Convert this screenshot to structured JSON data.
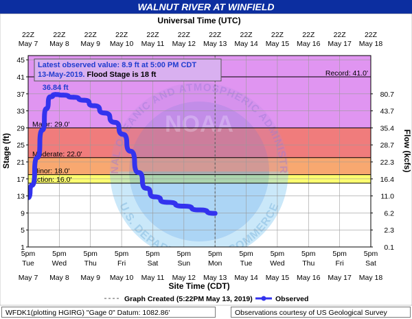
{
  "header": {
    "title": "WALNUT RIVER AT WINFIELD",
    "utc_label": "Universal Time (UTC)"
  },
  "colors": {
    "header_bg": "#0c2ea0",
    "record_band": "#d98cf0",
    "major_band": "#f07c7c",
    "moderate_band": "#f8a870",
    "minor_band": "#fbe08c",
    "action_band": "#ffff70",
    "normal_band": "#7fb3ff",
    "observed_line": "#3333ee",
    "annotation_text": "#1f3ccf"
  },
  "chart_data": {
    "type": "line",
    "x_unit": "date",
    "x_start": "2019-05-07 17:00",
    "x_end": "2019-05-18 17:00",
    "now": "2019-05-13 17:00",
    "ylim": [
      1,
      46
    ],
    "yticks": [
      1,
      5,
      9,
      13,
      17,
      21,
      25,
      29,
      33,
      37,
      41,
      45
    ],
    "ylabel": "Stage (ft)",
    "y2label": "Flow (kcfs)",
    "xlabel": "Site Time (CDT)",
    "flow_ticks": [
      {
        "stage": 1,
        "label": "0.1"
      },
      {
        "stage": 5,
        "label": "2.3"
      },
      {
        "stage": 9,
        "label": "6.2"
      },
      {
        "stage": 13,
        "label": "11.0"
      },
      {
        "stage": 17,
        "label": "16.4"
      },
      {
        "stage": 21,
        "label": "22.3"
      },
      {
        "stage": 25,
        "label": "28.7"
      },
      {
        "stage": 29,
        "label": "35.4"
      },
      {
        "stage": 33,
        "label": "43.7"
      },
      {
        "stage": 37,
        "label": "80.7"
      }
    ],
    "utc_ticks": [
      {
        "time": "22Z",
        "date": "May 7"
      },
      {
        "time": "22Z",
        "date": "May 8"
      },
      {
        "time": "22Z",
        "date": "May 9"
      },
      {
        "time": "22Z",
        "date": "May 10"
      },
      {
        "time": "22Z",
        "date": "May 11"
      },
      {
        "time": "22Z",
        "date": "May 12"
      },
      {
        "time": "22Z",
        "date": "May 13"
      },
      {
        "time": "22Z",
        "date": "May 14"
      },
      {
        "time": "22Z",
        "date": "May 15"
      },
      {
        "time": "22Z",
        "date": "May 16"
      },
      {
        "time": "22Z",
        "date": "May 17"
      },
      {
        "time": "22Z",
        "date": "May 18"
      }
    ],
    "local_ticks": [
      {
        "time": "5pm",
        "day": "Tue",
        "date": "May 7"
      },
      {
        "time": "5pm",
        "day": "Wed",
        "date": "May 8"
      },
      {
        "time": "5pm",
        "day": "Thu",
        "date": "May 9"
      },
      {
        "time": "5pm",
        "day": "Fri",
        "date": "May 10"
      },
      {
        "time": "5pm",
        "day": "Sat",
        "date": "May 11"
      },
      {
        "time": "5pm",
        "day": "Sun",
        "date": "May 12"
      },
      {
        "time": "5pm",
        "day": "Mon",
        "date": "May 13"
      },
      {
        "time": "5pm",
        "day": "Tue",
        "date": "May 14"
      },
      {
        "time": "5pm",
        "day": "Wed",
        "date": "May 15"
      },
      {
        "time": "5pm",
        "day": "Thu",
        "date": "May 16"
      },
      {
        "time": "5pm",
        "day": "Fri",
        "date": "May 17"
      },
      {
        "time": "5pm",
        "day": "Sat",
        "date": "May 18"
      }
    ],
    "flood_categories": [
      {
        "name": "Record",
        "label": "Record: 41.0'",
        "stage": 41.0
      },
      {
        "name": "Major",
        "label": "Major: 29.0'",
        "stage": 29.0
      },
      {
        "name": "Moderate",
        "label": "Moderate: 22.0'",
        "stage": 22.0
      },
      {
        "name": "Minor",
        "label": "Minor: 18.0'",
        "stage": 18.0
      },
      {
        "name": "Action",
        "label": "Action: 16.0'",
        "stage": 16.0
      }
    ],
    "peak_label": "36.84 ft",
    "peak": {
      "x": "2019-05-08 14:00",
      "y": 36.84
    },
    "series": [
      {
        "name": "Observed",
        "points": [
          {
            "x": "2019-05-07 17:00",
            "y": 12.6
          },
          {
            "x": "2019-05-07 20:00",
            "y": 15.5
          },
          {
            "x": "2019-05-08 00:00",
            "y": 22.0
          },
          {
            "x": "2019-05-08 04:00",
            "y": 28.5
          },
          {
            "x": "2019-05-08 07:00",
            "y": 33.5
          },
          {
            "x": "2019-05-08 10:00",
            "y": 36.3
          },
          {
            "x": "2019-05-08 14:00",
            "y": 36.84
          },
          {
            "x": "2019-05-08 20:00",
            "y": 36.7
          },
          {
            "x": "2019-05-09 04:00",
            "y": 36.2
          },
          {
            "x": "2019-05-09 12:00",
            "y": 35.5
          },
          {
            "x": "2019-05-09 20:00",
            "y": 34.2
          },
          {
            "x": "2019-05-10 04:00",
            "y": 32.5
          },
          {
            "x": "2019-05-10 12:00",
            "y": 30.3
          },
          {
            "x": "2019-05-10 18:00",
            "y": 27.5
          },
          {
            "x": "2019-05-11 00:00",
            "y": 23.5
          },
          {
            "x": "2019-05-11 06:00",
            "y": 18.5
          },
          {
            "x": "2019-05-11 12:00",
            "y": 14.8
          },
          {
            "x": "2019-05-11 18:00",
            "y": 12.8
          },
          {
            "x": "2019-05-12 04:00",
            "y": 11.5
          },
          {
            "x": "2019-05-12 17:00",
            "y": 10.6
          },
          {
            "x": "2019-05-13 05:00",
            "y": 9.7
          },
          {
            "x": "2019-05-13 17:00",
            "y": 8.9
          }
        ]
      }
    ],
    "annotation": {
      "line1": "Latest observed value: 8.9 ft at 5:00 PM CDT",
      "line2_date": "13-May-2019.",
      "line2_flood": "Flood Stage is 18 ft"
    },
    "watermark_text": "NOAA",
    "watermark_arc_top": "NATIONAL OCEANIC AND ATMOSPHERIC ADMINISTRATION",
    "watermark_arc_bottom": "U.S. DEPARTMENT OF COMMERCE",
    "legend": {
      "created": "Graph Created (5:22PM May 13, 2019)",
      "observed": "Observed"
    }
  },
  "footer": {
    "station": "WFDK1(plotting HGIRG) \"Gage 0\" Datum: 1082.86'",
    "credit": "Observations courtesy of US Geological Survey"
  }
}
